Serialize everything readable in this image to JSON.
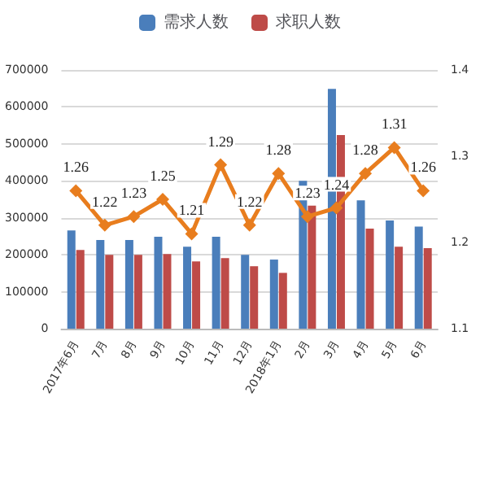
{
  "chart_data": {
    "type": "bar",
    "categories": [
      "2017年6月",
      "7月",
      "8月",
      "9月",
      "10月",
      "11月",
      "12月",
      "2018年1月",
      "2月",
      "3月",
      "4月",
      "5月",
      "6月"
    ],
    "series": [
      {
        "name": "需求人数",
        "color": "#4a7ebb",
        "values": [
          266000,
          240000,
          240000,
          249000,
          222000,
          249000,
          200000,
          187000,
          400000,
          649000,
          347000,
          293000,
          276000
        ]
      },
      {
        "name": "求职人数",
        "color": "#be4b48",
        "values": [
          213000,
          200000,
          200000,
          202000,
          182000,
          191000,
          169000,
          151000,
          333000,
          524000,
          271000,
          222000,
          218000
        ]
      },
      {
        "type": "line",
        "axis": "y2",
        "color": "#e87d1e",
        "marker": "diamond",
        "values": [
          1.26,
          1.22,
          1.23,
          1.25,
          1.21,
          1.29,
          1.22,
          1.28,
          1.23,
          1.24,
          1.28,
          1.31,
          1.26
        ],
        "value_labels": [
          "1.26",
          "1.22",
          "1.23",
          "1.25",
          "1.21",
          "1.29",
          "1.22",
          "1.28",
          "1.23",
          "1.24",
          "1.28",
          "1.31",
          "1.26"
        ]
      }
    ],
    "ylim": [
      0,
      700000
    ],
    "yticks": [
      0,
      100000,
      200000,
      300000,
      400000,
      500000,
      600000,
      700000
    ],
    "y2lim": [
      1.1,
      1.4
    ],
    "y2ticks": [
      1.1,
      1.2,
      1.3,
      1.4
    ],
    "grid": "y",
    "legend": "top"
  }
}
